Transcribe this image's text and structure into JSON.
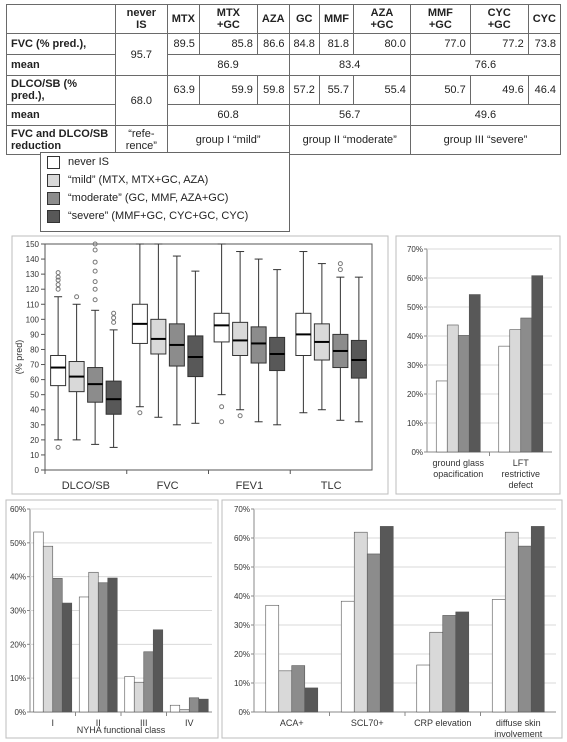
{
  "table": {
    "header": [
      "",
      "never IS",
      "MTX",
      "MTX +GC",
      "AZA",
      "GC",
      "MMF",
      "AZA +GC",
      "MMF +GC",
      "CYC +GC",
      "CYC"
    ],
    "fvc_label_1": "FVC (% pred.),",
    "fvc_label_2": "mean",
    "fvc_never": "95.7",
    "fvc_values": [
      "89.5",
      "85.8",
      "86.6",
      "84.8",
      "81.8",
      "80.0",
      "77.0",
      "77.2",
      "73.8"
    ],
    "fvc_group_means": [
      "86.9",
      "83.4",
      "76.6"
    ],
    "dlco_label_1": "DLCO/SB (% pred.),",
    "dlco_label_2": "mean",
    "dlco_never": "68.0",
    "dlco_values": [
      "63.9",
      "59.9",
      "59.8",
      "57.2",
      "55.7",
      "55.4",
      "50.7",
      "49.6",
      "46.4"
    ],
    "dlco_group_means": [
      "60.8",
      "56.7",
      "49.6"
    ],
    "red_label_1": "FVC and DLCO/SB",
    "red_label_2": "reduction",
    "red_ref_1": "“refe-",
    "red_ref_2": "rence”",
    "groups": [
      "group I “mild”",
      "group II “moderate”",
      "group III “severe”"
    ]
  },
  "legend": [
    {
      "label": "never IS",
      "color": "#ffffff"
    },
    {
      "label": "“mild” (MTX, MTX+GC, AZA)",
      "color": "#d9d9d9"
    },
    {
      "label": "“moderate” (GC, MMF, AZA+GC)",
      "color": "#8c8c8c"
    },
    {
      "label": "“severe” (MMF+GC, CYC+GC, CYC)",
      "color": "#585858"
    }
  ],
  "colors": [
    "#ffffff",
    "#d9d9d9",
    "#8c8c8c",
    "#585858"
  ],
  "chart_data": [
    {
      "type": "box",
      "ylabel": "(% pred)",
      "ylim": [
        0,
        150
      ],
      "yticks": [
        0,
        10,
        20,
        30,
        40,
        50,
        60,
        70,
        80,
        90,
        100,
        110,
        120,
        130,
        140,
        150
      ],
      "categories": [
        "DLCO/SB",
        "FVC",
        "FEV1",
        "TLC"
      ],
      "boxes": [
        [
          {
            "min": 20,
            "q1": 56,
            "median": 68,
            "q3": 76,
            "max": 115,
            "outliers": [
              15,
              120,
              123,
              126,
              128,
              131
            ]
          },
          {
            "min": 20,
            "q1": 52,
            "median": 62,
            "q3": 72,
            "max": 110,
            "outliers": [
              115
            ]
          },
          {
            "min": 17,
            "q1": 45,
            "median": 57,
            "q3": 68,
            "max": 106,
            "outliers": [
              113,
              120,
              125,
              132,
              138,
              146,
              150
            ]
          },
          {
            "min": 15,
            "q1": 37,
            "median": 47,
            "q3": 59,
            "max": 93,
            "outliers": [
              98,
              101,
              104
            ]
          }
        ],
        [
          {
            "min": 42,
            "q1": 84,
            "median": 97,
            "q3": 110,
            "max": 150,
            "outliers": [
              38
            ]
          },
          {
            "min": 35,
            "q1": 77,
            "median": 87,
            "q3": 100,
            "max": 150,
            "outliers": []
          },
          {
            "min": 30,
            "q1": 69,
            "median": 83,
            "q3": 97,
            "max": 142,
            "outliers": []
          },
          {
            "min": 31,
            "q1": 62,
            "median": 75,
            "q3": 89,
            "max": 132,
            "outliers": []
          }
        ],
        [
          {
            "min": 50,
            "q1": 85,
            "median": 96,
            "q3": 104,
            "max": 150,
            "outliers": [
              32,
              42
            ]
          },
          {
            "min": 40,
            "q1": 76,
            "median": 86,
            "q3": 98,
            "max": 145,
            "outliers": [
              36
            ]
          },
          {
            "min": 32,
            "q1": 71,
            "median": 84,
            "q3": 95,
            "max": 140,
            "outliers": []
          },
          {
            "min": 30,
            "q1": 66,
            "median": 77,
            "q3": 88,
            "max": 133,
            "outliers": []
          }
        ],
        [
          {
            "min": 38,
            "q1": 76,
            "median": 90,
            "q3": 104,
            "max": 145,
            "outliers": []
          },
          {
            "min": 40,
            "q1": 73,
            "median": 85,
            "q3": 97,
            "max": 137,
            "outliers": []
          },
          {
            "min": 33,
            "q1": 68,
            "median": 79,
            "q3": 90,
            "max": 128,
            "outliers": [
              133,
              137
            ]
          },
          {
            "min": 32,
            "q1": 61,
            "median": 73,
            "q3": 86,
            "max": 128,
            "outliers": []
          }
        ]
      ]
    },
    {
      "type": "bar",
      "ylim": [
        0,
        70
      ],
      "yticks": [
        "0%",
        "10%",
        "20%",
        "30%",
        "40%",
        "50%",
        "60%",
        "70%"
      ],
      "categories": [
        "ground glass opacification",
        "LFT restrictive defect"
      ],
      "series": [
        {
          "values": [
            24.5,
            36.5
          ]
        },
        {
          "values": [
            43.8,
            42.2
          ]
        },
        {
          "values": [
            40.2,
            46.2
          ]
        },
        {
          "values": [
            54.3,
            60.8
          ]
        }
      ]
    },
    {
      "type": "bar",
      "xlabel": "NYHA functional class",
      "ylim": [
        0,
        60
      ],
      "yticks": [
        "0%",
        "10%",
        "20%",
        "30%",
        "40%",
        "50%",
        "60%"
      ],
      "categories": [
        "I",
        "II",
        "III",
        "IV"
      ],
      "series": [
        {
          "values": [
            53.2,
            34.0,
            10.5,
            2.0
          ]
        },
        {
          "values": [
            49.0,
            41.3,
            8.8,
            0.7
          ]
        },
        {
          "values": [
            39.5,
            38.2,
            17.8,
            4.2
          ]
        },
        {
          "values": [
            32.2,
            39.6,
            24.3,
            3.8
          ]
        }
      ]
    },
    {
      "type": "bar",
      "ylim": [
        0,
        70
      ],
      "yticks": [
        "0%",
        "10%",
        "20%",
        "30%",
        "40%",
        "50%",
        "60%",
        "70%"
      ],
      "categories": [
        "ACA+",
        "SCL70+",
        "CRP elevation",
        "diffuse skin involvement"
      ],
      "series": [
        {
          "values": [
            36.8,
            38.2,
            16.2,
            38.8
          ]
        },
        {
          "values": [
            14.2,
            62.0,
            27.5,
            62.0
          ]
        },
        {
          "values": [
            16.0,
            54.5,
            33.3,
            57.2
          ]
        },
        {
          "values": [
            8.3,
            64.0,
            34.5,
            64.0
          ]
        }
      ]
    }
  ]
}
